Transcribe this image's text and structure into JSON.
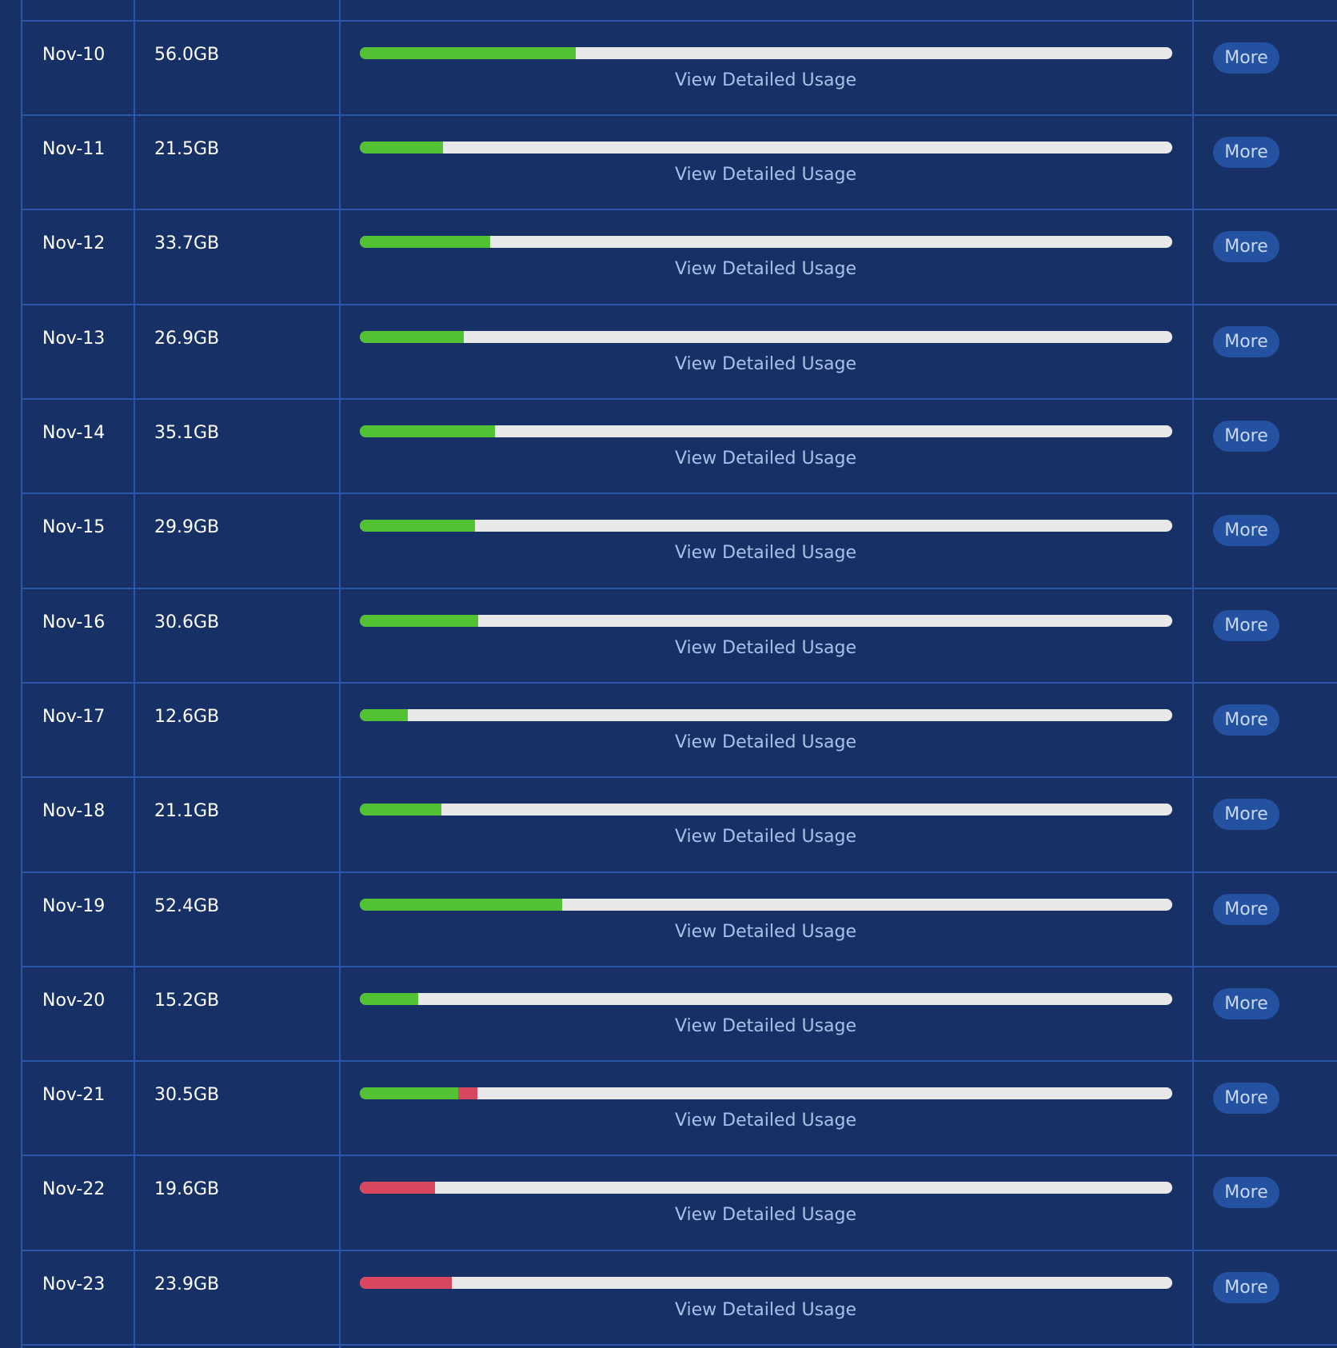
{
  "bar_range": [
    0,
    210
  ],
  "link_text": "View Detailed Usage",
  "button_text": "More",
  "rows": [
    {
      "date": "Nov-10",
      "usage": {
        "value": 56.0,
        "label": "56.0GB"
      },
      "segments": [
        {
          "color": "#52c234",
          "value": 56.0
        }
      ]
    },
    {
      "date": "Nov-11",
      "usage": {
        "value": 21.5,
        "label": "21.5GB"
      },
      "segments": [
        {
          "color": "#52c234",
          "value": 21.5
        }
      ]
    },
    {
      "date": "Nov-12",
      "usage": {
        "value": 33.7,
        "label": "33.7GB"
      },
      "segments": [
        {
          "color": "#52c234",
          "value": 33.7
        }
      ]
    },
    {
      "date": "Nov-13",
      "usage": {
        "value": 26.9,
        "label": "26.9GB"
      },
      "segments": [
        {
          "color": "#52c234",
          "value": 26.9
        }
      ]
    },
    {
      "date": "Nov-14",
      "usage": {
        "value": 35.1,
        "label": "35.1GB"
      },
      "segments": [
        {
          "color": "#52c234",
          "value": 35.1
        }
      ]
    },
    {
      "date": "Nov-15",
      "usage": {
        "value": 29.9,
        "label": "29.9GB"
      },
      "segments": [
        {
          "color": "#52c234",
          "value": 29.9
        }
      ]
    },
    {
      "date": "Nov-16",
      "usage": {
        "value": 30.6,
        "label": "30.6GB"
      },
      "segments": [
        {
          "color": "#52c234",
          "value": 30.6
        }
      ]
    },
    {
      "date": "Nov-17",
      "usage": {
        "value": 12.6,
        "label": "12.6GB"
      },
      "segments": [
        {
          "color": "#52c234",
          "value": 12.6
        }
      ]
    },
    {
      "date": "Nov-18",
      "usage": {
        "value": 21.1,
        "label": "21.1GB"
      },
      "segments": [
        {
          "color": "#52c234",
          "value": 21.1
        }
      ]
    },
    {
      "date": "Nov-19",
      "usage": {
        "value": 52.4,
        "label": "52.4GB"
      },
      "segments": [
        {
          "color": "#52c234",
          "value": 52.4
        }
      ]
    },
    {
      "date": "Nov-20",
      "usage": {
        "value": 15.2,
        "label": "15.2GB"
      },
      "segments": [
        {
          "color": "#52c234",
          "value": 15.2
        }
      ]
    },
    {
      "date": "Nov-21",
      "usage": {
        "value": 30.5,
        "label": "30.5GB"
      },
      "segments": [
        {
          "color": "#52c234",
          "value": 25.6
        },
        {
          "color": "#d9475f",
          "value": 4.9
        }
      ]
    },
    {
      "date": "Nov-22",
      "usage": {
        "value": 19.6,
        "label": "19.6GB"
      },
      "segments": [
        {
          "color": "#d9475f",
          "value": 19.6
        }
      ]
    },
    {
      "date": "Nov-23",
      "usage": {
        "value": 23.9,
        "label": "23.9GB"
      },
      "segments": [
        {
          "color": "#d9475f",
          "value": 23.9
        }
      ]
    }
  ]
}
